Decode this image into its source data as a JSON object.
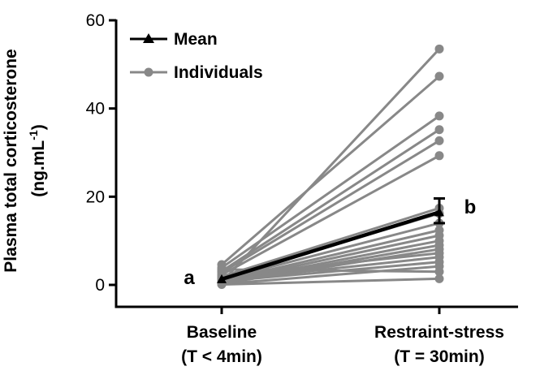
{
  "chart_data": {
    "type": "line",
    "categories": [
      "Baseline",
      "Restraint-stress"
    ],
    "category_sublabels": [
      "(T < 4min)",
      "(T = 30min)"
    ],
    "ylabel": "Plasma total corticosterone",
    "ylabel_unit_base": "(ng.mL",
    "ylabel_unit_exp": "-1",
    "ylabel_unit_close": ")",
    "ylim": [
      0,
      60
    ],
    "yticks": [
      0,
      20,
      40,
      60
    ],
    "legend": {
      "position": "top-left",
      "entries": [
        {
          "label": "Mean",
          "color": "#000000",
          "marker": "triangle"
        },
        {
          "label": "Individuals",
          "color": "#888888",
          "marker": "circle"
        }
      ]
    },
    "mean": {
      "values": [
        1.3,
        16.5
      ],
      "error_bar_restraint": [
        14.0,
        19.6
      ]
    },
    "individuals": [
      [
        0.6,
        53.5
      ],
      [
        4.6,
        47.3
      ],
      [
        3.9,
        38.3
      ],
      [
        3.1,
        35.2
      ],
      [
        2.8,
        32.7
      ],
      [
        2.3,
        29.3
      ],
      [
        1.9,
        17.4
      ],
      [
        1.5,
        16.2
      ],
      [
        1.2,
        14.0
      ],
      [
        0.9,
        12.4
      ],
      [
        0.7,
        11.2
      ],
      [
        0.5,
        10.0
      ],
      [
        0.4,
        9.0
      ],
      [
        0.3,
        8.1
      ],
      [
        2.0,
        7.2
      ],
      [
        1.0,
        6.3
      ],
      [
        0.8,
        5.2
      ],
      [
        0.2,
        4.2
      ],
      [
        3.5,
        3.0
      ],
      [
        0.1,
        1.4
      ]
    ],
    "annotations": [
      {
        "text": "a",
        "category": 0
      },
      {
        "text": "b",
        "category": 1
      }
    ],
    "colors": {
      "mean": "#000000",
      "individual": "#888888",
      "axis": "#000000"
    }
  }
}
